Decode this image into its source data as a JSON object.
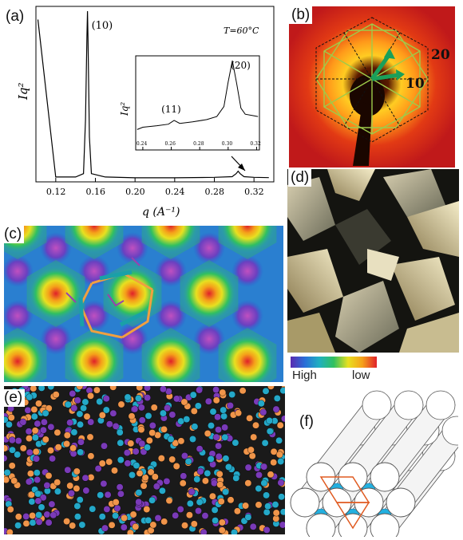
{
  "panels": {
    "a": "(a)",
    "b": "(b)",
    "c": "(c)",
    "d": "(d)",
    "e": "(e)",
    "f": "(f)"
  },
  "chart_data": {
    "type": "line",
    "xlabel": "q (A⁻¹)",
    "ylabel": "Iq²",
    "annotation": "T=60°C",
    "xticks": [
      "0.12",
      "0.16",
      "0.20",
      "0.24",
      "0.28",
      "0.32"
    ],
    "xlim": [
      0.1,
      0.34
    ],
    "peaks": [
      {
        "label": "(10)",
        "q": 0.152
      },
      {
        "label": "(20)",
        "q": 0.304
      }
    ],
    "series": [
      {
        "x": [
          0.102,
          0.12,
          0.14,
          0.148,
          0.15,
          0.1515,
          0.152,
          0.1525,
          0.154,
          0.156,
          0.17,
          0.2,
          0.24,
          0.28,
          0.298,
          0.302,
          0.304,
          0.306,
          0.31,
          0.32,
          0.335
        ],
        "y": [
          0.95,
          0.01,
          0.01,
          0.03,
          0.35,
          0.85,
          1.0,
          0.85,
          0.25,
          0.03,
          0.01,
          0.005,
          0.005,
          0.008,
          0.012,
          0.03,
          0.045,
          0.03,
          0.012,
          0.008,
          0.006
        ]
      }
    ],
    "inset": {
      "ylabel": "Iq²",
      "xticks": [
        "0.24",
        "0.26",
        "0.28",
        "0.30",
        "0.32"
      ],
      "xlim": [
        0.235,
        0.322
      ],
      "peaks": [
        {
          "label": "(11)",
          "q": 0.262
        },
        {
          "label": "(20)",
          "q": 0.303
        }
      ],
      "series": [
        {
          "x": [
            0.236,
            0.24,
            0.25,
            0.258,
            0.262,
            0.266,
            0.275,
            0.285,
            0.292,
            0.297,
            0.3,
            0.303,
            0.306,
            0.309,
            0.312,
            0.318,
            0.321
          ],
          "y": [
            0.1,
            0.13,
            0.15,
            0.17,
            0.22,
            0.18,
            0.2,
            0.23,
            0.27,
            0.4,
            0.72,
            1.0,
            0.7,
            0.38,
            0.3,
            0.28,
            0.27
          ]
        }
      ]
    }
  },
  "panel_b": {
    "labels": [
      "10",
      "20"
    ]
  },
  "colorbar": {
    "high": "High",
    "low": "low"
  }
}
